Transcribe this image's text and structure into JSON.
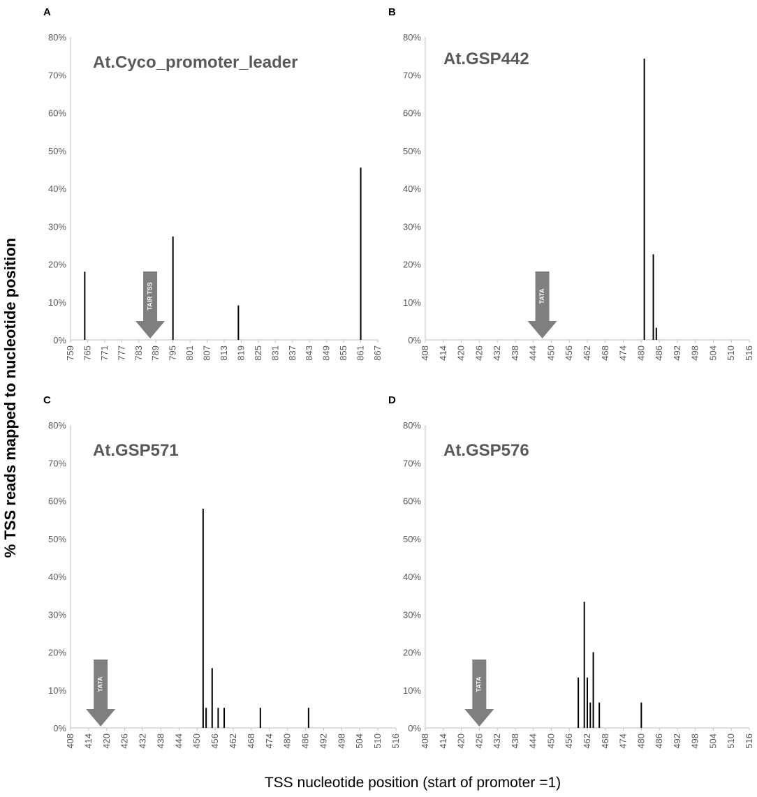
{
  "figure": {
    "ylabel": "% TSS reads mapped to nucleotide position",
    "xlabel": "TSS nucleotide position (start of promoter =1)"
  },
  "colors": {
    "bar": "#000000",
    "axis": "#bfbfbf",
    "text": "#595959",
    "arrow": "#7f7f7f"
  },
  "chart_data": [
    {
      "type": "bar",
      "panel": "A",
      "title": "At.Cyco_promoter_leader",
      "ylim": [
        0,
        80
      ],
      "yticks": [
        "0%",
        "10%",
        "20%",
        "30%",
        "40%",
        "50%",
        "60%",
        "70%",
        "80%"
      ],
      "xlim": [
        759,
        867
      ],
      "xticks": [
        "759",
        "765",
        "771",
        "777",
        "783",
        "789",
        "795",
        "801",
        "807",
        "813",
        "819",
        "825",
        "831",
        "837",
        "843",
        "849",
        "855",
        "861",
        "867"
      ],
      "x": [
        764,
        795,
        818,
        861
      ],
      "values": [
        18,
        27.3,
        9.1,
        45.5
      ],
      "annotation": {
        "label": "TAIR TSS",
        "x": 787
      }
    },
    {
      "type": "bar",
      "panel": "B",
      "title": "At.GSP442",
      "ylim": [
        0,
        80
      ],
      "yticks": [
        "0%",
        "10%",
        "20%",
        "30%",
        "40%",
        "50%",
        "60%",
        "70%",
        "80%"
      ],
      "xlim": [
        408,
        516
      ],
      "xticks": [
        "408",
        "414",
        "420",
        "426",
        "432",
        "438",
        "444",
        "450",
        "456",
        "462",
        "468",
        "474",
        "480",
        "486",
        "492",
        "498",
        "504",
        "510",
        "516"
      ],
      "x": [
        481,
        484,
        485
      ],
      "values": [
        74.3,
        22.6,
        3.2
      ],
      "annotation": {
        "label": "TATA",
        "x": 447
      }
    },
    {
      "type": "bar",
      "panel": "C",
      "title": "At.GSP571",
      "ylim": [
        0,
        80
      ],
      "yticks": [
        "0%",
        "10%",
        "20%",
        "30%",
        "40%",
        "50%",
        "60%",
        "70%",
        "80%"
      ],
      "xlim": [
        408,
        516
      ],
      "xticks": [
        "408",
        "414",
        "420",
        "426",
        "432",
        "438",
        "444",
        "450",
        "456",
        "462",
        "468",
        "474",
        "480",
        "486",
        "492",
        "498",
        "504",
        "510",
        "516"
      ],
      "x": [
        452,
        453,
        455,
        457,
        459,
        471,
        487
      ],
      "values": [
        57.9,
        5.3,
        15.8,
        5.3,
        5.3,
        5.3,
        5.3
      ],
      "annotation": {
        "label": "TATA",
        "x": 418
      }
    },
    {
      "type": "bar",
      "panel": "D",
      "title": "At.GSP576",
      "ylim": [
        0,
        80
      ],
      "yticks": [
        "0%",
        "10%",
        "20%",
        "30%",
        "40%",
        "50%",
        "60%",
        "70%",
        "80%"
      ],
      "xlim": [
        408,
        516
      ],
      "xticks": [
        "408",
        "414",
        "420",
        "426",
        "432",
        "438",
        "444",
        "450",
        "456",
        "462",
        "468",
        "474",
        "480",
        "486",
        "492",
        "498",
        "504",
        "510",
        "516"
      ],
      "x": [
        459,
        461,
        462,
        463,
        464,
        466,
        480
      ],
      "values": [
        13.3,
        33.3,
        13.3,
        6.7,
        20,
        6.7,
        6.7
      ],
      "annotation": {
        "label": "TATA",
        "x": 426
      }
    }
  ]
}
